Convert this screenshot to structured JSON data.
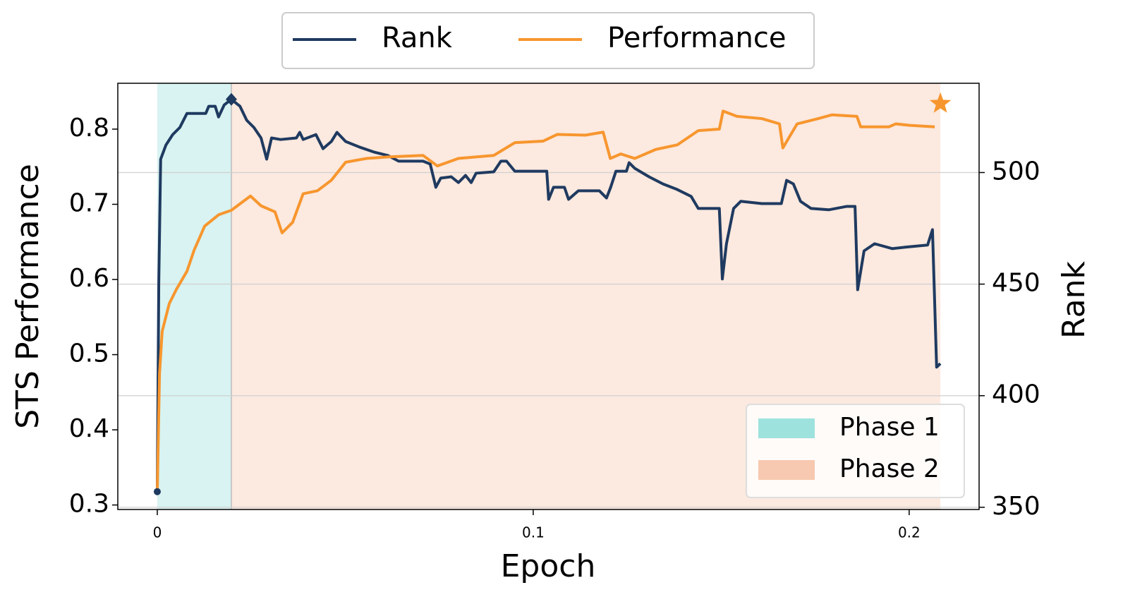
{
  "chart_data": {
    "type": "line",
    "x_label": "Epoch",
    "y_label": "STS Performance",
    "y2_label": "Rank",
    "xlim": [
      -0.0105,
      0.2186
    ],
    "xticks": [
      0,
      0.1,
      0.2
    ],
    "ylim": [
      0.294,
      0.861
    ],
    "yticks": [
      0.3,
      0.4,
      0.5,
      0.6,
      0.7,
      0.8
    ],
    "y2lim": [
      349,
      540
    ],
    "y2ticks": [
      350,
      400,
      450,
      500
    ],
    "grid": true,
    "legend_position": "top",
    "phase_legend_position": "lower right",
    "phases": [
      {
        "name": "Phase 1",
        "start": 0,
        "end": 0.0197,
        "color": "#9ee2dd"
      },
      {
        "name": "Phase 2",
        "start": 0.0197,
        "end": 0.2083,
        "color": "#f7c9b0"
      }
    ],
    "series": [
      {
        "name": "Rank",
        "color": "#1f3a60",
        "axis": "y2",
        "x": [
          0,
          0.0004,
          0.0009,
          0.0023,
          0.0041,
          0.006,
          0.0079,
          0.0129,
          0.0137,
          0.0154,
          0.0163,
          0.0178,
          0.0197,
          0.022,
          0.0238,
          0.0257,
          0.0276,
          0.0291,
          0.0304,
          0.0328,
          0.037,
          0.0379,
          0.0388,
          0.0422,
          0.0441,
          0.0463,
          0.0478,
          0.0501,
          0.0538,
          0.0576,
          0.0614,
          0.0642,
          0.0707,
          0.0726,
          0.0741,
          0.0754,
          0.0782,
          0.0801,
          0.082,
          0.0835,
          0.0848,
          0.0895,
          0.0914,
          0.0929,
          0.0951,
          0.1008,
          0.1036,
          0.1041,
          0.1054,
          0.1083,
          0.1094,
          0.112,
          0.1176,
          0.1195,
          0.1206,
          0.122,
          0.1248,
          0.1255,
          0.127,
          0.1308,
          0.1345,
          0.1383,
          0.142,
          0.1439,
          0.1495,
          0.1503,
          0.1514,
          0.1533,
          0.1552,
          0.1608,
          0.166,
          0.1674,
          0.1692,
          0.1711,
          0.1739,
          0.1786,
          0.1833,
          0.1856,
          0.1863,
          0.188,
          0.1908,
          0.1955,
          0.1992,
          0.2049,
          0.2062,
          0.2073,
          0.2083
        ],
        "values": [
          357,
          450.7,
          506,
          512.3,
          517,
          520.2,
          526.5,
          526.5,
          529.7,
          529.7,
          524.9,
          530.3,
          532.8,
          529.7,
          523.4,
          520.2,
          515.5,
          506,
          515.5,
          514.8,
          515.5,
          518,
          514.8,
          517,
          510.7,
          513.9,
          518,
          513.9,
          511.4,
          509.2,
          507.6,
          505.1,
          505.1,
          503.8,
          493.4,
          497.5,
          498.1,
          495.5,
          498.7,
          495.5,
          499.7,
          500.3,
          505.1,
          505.1,
          500.6,
          500.6,
          500.6,
          488,
          493.4,
          493.4,
          488,
          491.8,
          491.8,
          488.6,
          493.4,
          500.6,
          500.6,
          504.4,
          501.9,
          498.1,
          494.9,
          492.4,
          489.3,
          483.9,
          483.9,
          452.3,
          468.1,
          483.9,
          487.1,
          486.1,
          486.1,
          496.5,
          494.9,
          487.1,
          483.9,
          483.3,
          484.8,
          484.8,
          447.5,
          464.9,
          468.1,
          465.9,
          466.6,
          467.5,
          474.4,
          412.8,
          414.4
        ]
      },
      {
        "name": "Performance",
        "color": "#f7962e",
        "axis": "y",
        "x": [
          0,
          0.0006,
          0.0013,
          0.0032,
          0.0051,
          0.0079,
          0.0098,
          0.0126,
          0.0163,
          0.0197,
          0.0229,
          0.0248,
          0.0276,
          0.0313,
          0.0332,
          0.036,
          0.0388,
          0.0426,
          0.0463,
          0.0501,
          0.0557,
          0.0614,
          0.0707,
          0.0745,
          0.0801,
          0.0895,
          0.0951,
          0.1026,
          0.1064,
          0.1139,
          0.1186,
          0.1205,
          0.1233,
          0.127,
          0.1326,
          0.1383,
          0.1439,
          0.1495,
          0.1505,
          0.1542,
          0.1608,
          0.1655,
          0.1664,
          0.1702,
          0.1758,
          0.1795,
          0.1861,
          0.1871,
          0.1946,
          0.1964,
          0.2002,
          0.2068
        ],
        "values": [
          0.318,
          0.475,
          0.531,
          0.568,
          0.587,
          0.611,
          0.639,
          0.671,
          0.686,
          0.692,
          0.704,
          0.711,
          0.698,
          0.69,
          0.662,
          0.676,
          0.714,
          0.718,
          0.732,
          0.756,
          0.761,
          0.763,
          0.765,
          0.751,
          0.761,
          0.765,
          0.782,
          0.784,
          0.793,
          0.792,
          0.796,
          0.761,
          0.767,
          0.761,
          0.773,
          0.779,
          0.798,
          0.8,
          0.824,
          0.817,
          0.814,
          0.807,
          0.775,
          0.807,
          0.814,
          0.819,
          0.817,
          0.803,
          0.803,
          0.807,
          0.805,
          0.803
        ]
      }
    ],
    "markers": [
      {
        "series": 0,
        "marker": "circle",
        "x": 0,
        "value": 357
      },
      {
        "series": 0,
        "marker": "diamond",
        "x": 0.0197,
        "value": 532.8
      },
      {
        "series": 1,
        "marker": "star",
        "x": 0.2083,
        "value": 0.834
      }
    ]
  }
}
